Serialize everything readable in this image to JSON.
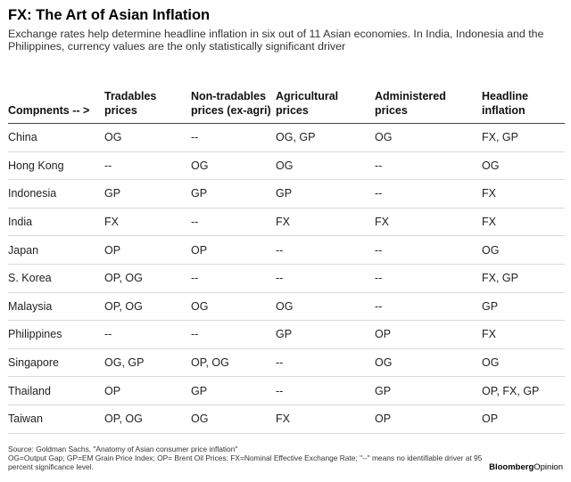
{
  "title": "FX: The Art of Asian Inflation",
  "subtitle": "Exchange rates help determine headline inflation in six out of 11 Asian economies. In India, Indonesia and the Philippines, currency values are the only statistically significant driver",
  "table": {
    "headers": [
      "Compnents -- >",
      "Tradables prices",
      "Non-tradables prices (ex-agri)",
      "Agricultural prices",
      "Administered prices",
      "Headline inflation"
    ],
    "rows": [
      [
        "China",
        "OG",
        "--",
        "OG, GP",
        "OG",
        "FX, GP"
      ],
      [
        "Hong Kong",
        "--",
        "OG",
        "OG",
        "--",
        "OG"
      ],
      [
        "Indonesia",
        "GP",
        "GP",
        "GP",
        "--",
        "FX"
      ],
      [
        "India",
        "FX",
        "--",
        "FX",
        "FX",
        "FX"
      ],
      [
        "Japan",
        "OP",
        "OP",
        "--",
        "--",
        "OG"
      ],
      [
        "S. Korea",
        "OP, OG",
        "--",
        "--",
        "--",
        "FX, GP"
      ],
      [
        "Malaysia",
        "OP, OG",
        "OG",
        "OG",
        "--",
        "GP"
      ],
      [
        "Philippines",
        "--",
        "--",
        "GP",
        "OP",
        "FX"
      ],
      [
        "Singapore",
        "OG, GP",
        "OP, OG",
        "--",
        "OG",
        "OG"
      ],
      [
        "Thailand",
        "OP",
        "GP",
        "--",
        "GP",
        "OP, FX, GP"
      ],
      [
        "Taiwan",
        "OP, OG",
        "OG",
        "FX",
        "OP",
        "OP"
      ]
    ]
  },
  "footer": {
    "source": "Source: Goldman Sachs, \"Anatomy of Asian consumer price inflation\"",
    "legend": "OG=Output Gap; GP=EM Grain Price Index; OP= Brent Oil Prices; FX=Nominal Effective Exchange Rate; \"--\" means no identifiable driver at 95 percent significance level."
  },
  "brand": {
    "part1": "Bloomberg",
    "part2": "Opinion"
  }
}
